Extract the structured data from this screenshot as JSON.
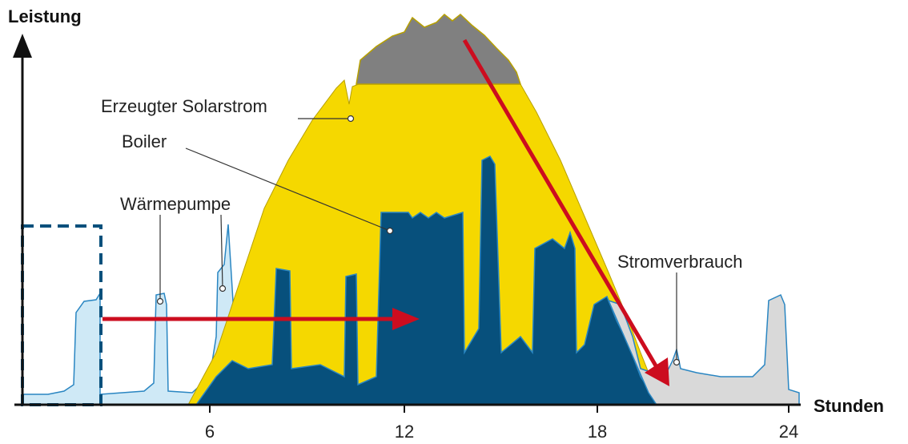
{
  "colors": {
    "solar": "#f5d800",
    "boiler": "#07507c",
    "surplus_grey": "#808080",
    "consumption_light": "#cfe9f6",
    "consumption_grey": "#d9d9d9",
    "arrow": "#cc0d1f",
    "axis": "#111111",
    "line_blue": "#2a86c2"
  },
  "axes": {
    "y_title": "Leistung",
    "x_title": "Stunden",
    "x_ticks": [
      "6",
      "12",
      "18",
      "24"
    ]
  },
  "labels": {
    "solar": "Erzeugter Solarstrom",
    "boiler": "Boiler",
    "heat_pump": "Wärmepumpe",
    "consumption": "Stromverbrauch"
  }
}
